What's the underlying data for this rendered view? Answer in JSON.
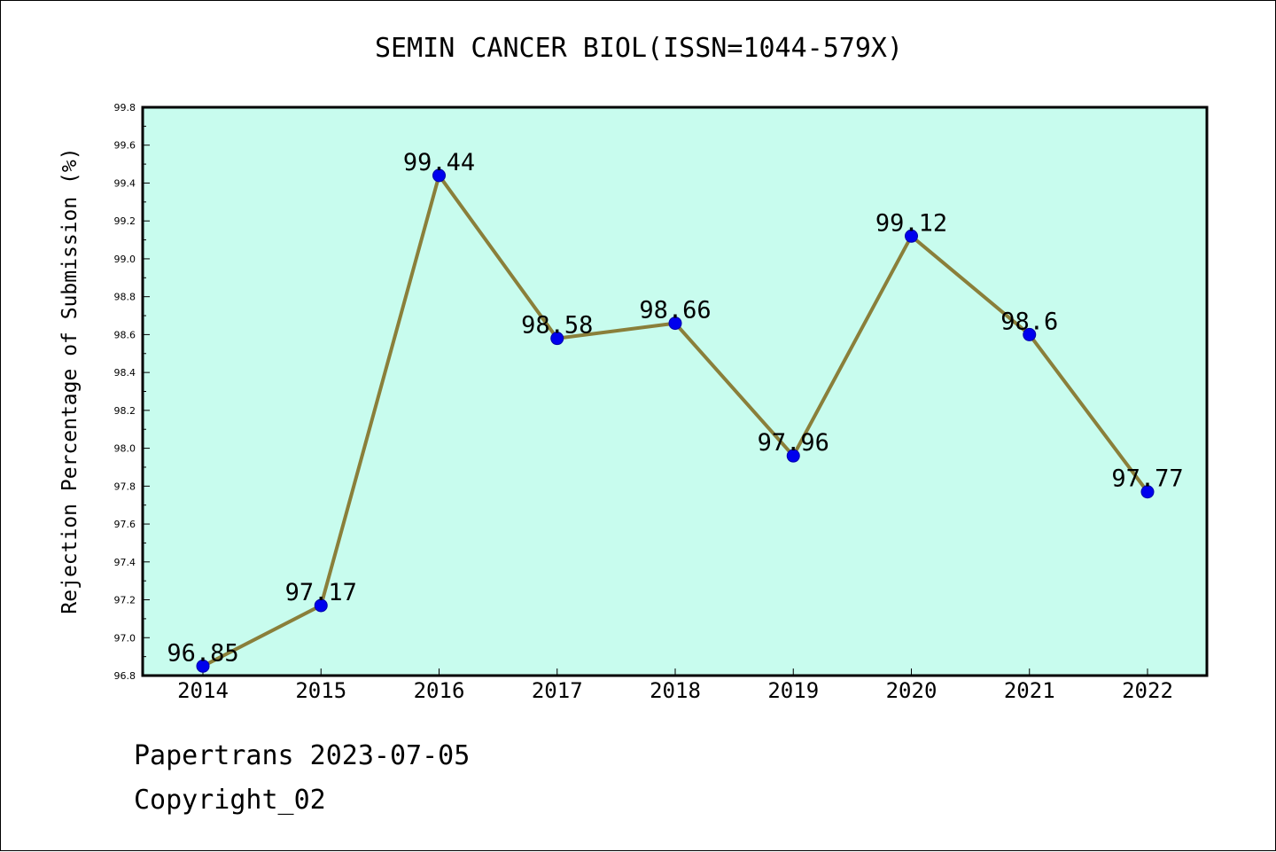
{
  "chart_data": {
    "type": "line",
    "title": "SEMIN CANCER BIOL(ISSN=1044-579X)",
    "xlabel": "",
    "ylabel": "Rejection Percentage of Submission (%)",
    "categories": [
      "2014",
      "2015",
      "2016",
      "2017",
      "2018",
      "2019",
      "2020",
      "2021",
      "2022"
    ],
    "series": [
      {
        "values": [
          96.85,
          97.17,
          99.44,
          98.58,
          98.66,
          97.96,
          99.12,
          98.6,
          97.77
        ],
        "labels": [
          "96.85",
          "97.17",
          "99.44",
          "98.58",
          "98.66",
          "97.96",
          "99.12",
          "98.6",
          "97.77"
        ]
      }
    ],
    "ylim": [
      96.8,
      99.8
    ],
    "yticks": [
      "96.8",
      "97.0",
      "97.2",
      "97.4",
      "97.6",
      "97.8",
      "98.0",
      "98.2",
      "98.4",
      "98.6",
      "98.8",
      "99.0",
      "99.2",
      "99.4",
      "99.6",
      "99.8"
    ],
    "grid": false,
    "colors": {
      "plot_background": "#c8fcee",
      "line": "#8a7f3a",
      "marker": "#0000ee"
    }
  },
  "footer": {
    "line1": "Papertrans 2023-07-05",
    "line2": "Copyright_02"
  }
}
